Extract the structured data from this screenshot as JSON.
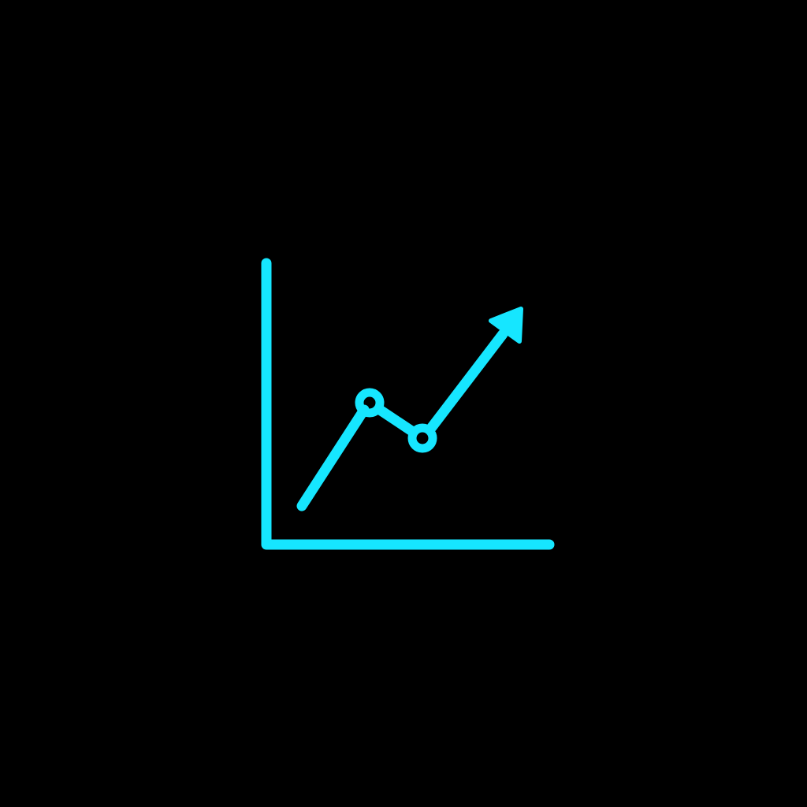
{
  "icon": {
    "name": "trending-up-chart-icon",
    "stroke_color": "#16E6FF",
    "background_color": "#000000"
  }
}
